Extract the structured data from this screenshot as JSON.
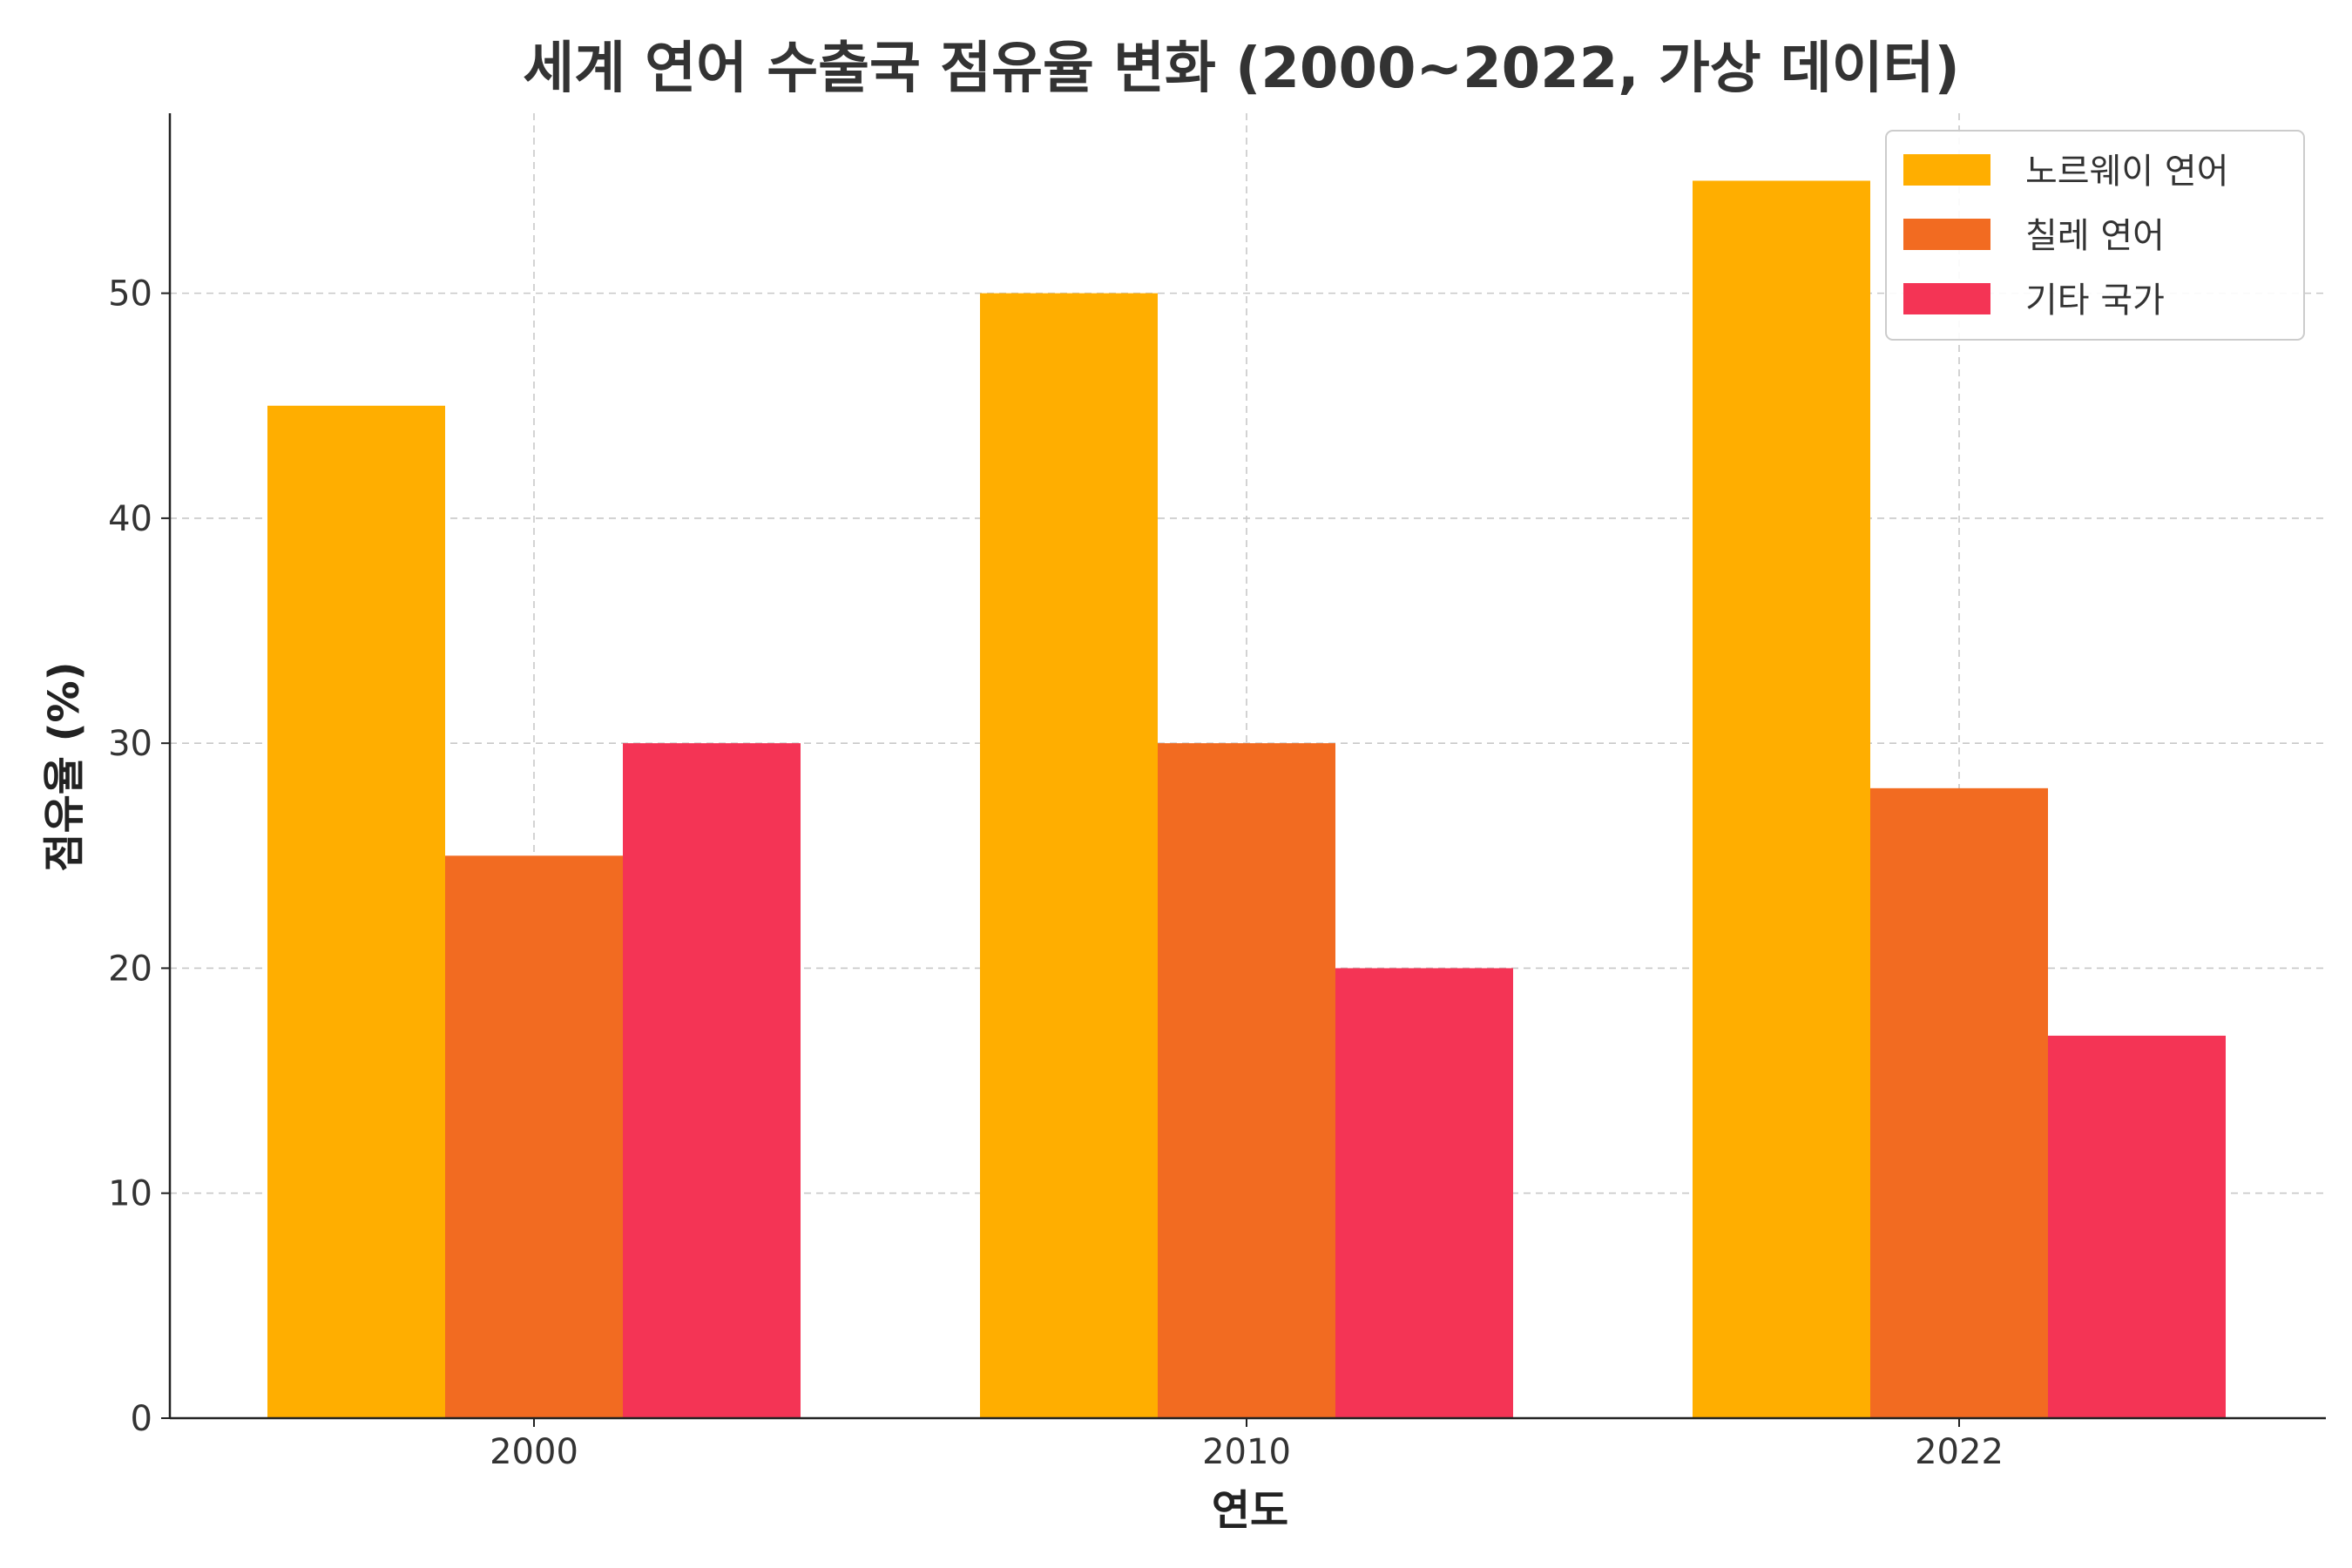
{
  "chart_data": {
    "type": "bar",
    "title": "세계 연어 수출국 점유율 변화 (2000~2022, 가상 데이터)",
    "xlabel": "연도",
    "ylabel": "점유율 (%)",
    "categories": [
      "2000",
      "2010",
      "2022"
    ],
    "ylim": [
      0,
      58
    ],
    "yticks": [
      0,
      10,
      20,
      30,
      40,
      50
    ],
    "grid": true,
    "legend_position": "top-right",
    "series": [
      {
        "name": "노르웨이 연어",
        "color": "#ffae00",
        "values": [
          45,
          50,
          55
        ]
      },
      {
        "name": "칠레 연어",
        "color": "#f26b21",
        "values": [
          25,
          30,
          28
        ]
      },
      {
        "name": "기타 국가",
        "color": "#f43455",
        "values": [
          30,
          20,
          17
        ]
      }
    ]
  }
}
